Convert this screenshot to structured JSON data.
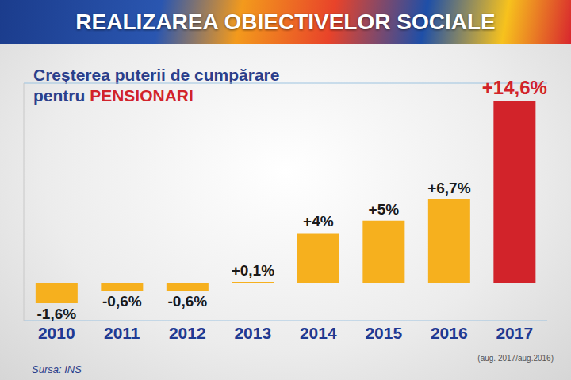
{
  "chart_data": {
    "type": "bar",
    "title": "REALIZAREA OBIECTIVELOR SOCIALE",
    "subtitle": "Creșterea puterii de cumpărare pentru PENSIONARI",
    "categories": [
      "2010",
      "2011",
      "2012",
      "2013",
      "2014",
      "2015",
      "2016",
      "2017"
    ],
    "values": [
      -1.6,
      -0.6,
      -0.6,
      0.1,
      4,
      5,
      6.7,
      14.6
    ],
    "value_labels": [
      "-1,6%",
      "-0,6%",
      "-0,6%",
      "+0,1%",
      "+4%",
      "+5%",
      "+6,7%",
      "+14,6%"
    ],
    "color": "#f6b01e",
    "colors": [
      "#f6b01e",
      "#f6b01e",
      "#f6b01e",
      "#f6b01e",
      "#f6b01e",
      "#f6b01e",
      "#f6b01e",
      "#d2232a"
    ],
    "ylim": [
      -3,
      16
    ],
    "yticks": [
      0
    ],
    "grid": true,
    "data_labels": true,
    "tick_labels": "x",
    "annotations": [
      "(aug. 2017/aug.2016)",
      "Sursa: INS"
    ]
  }
}
